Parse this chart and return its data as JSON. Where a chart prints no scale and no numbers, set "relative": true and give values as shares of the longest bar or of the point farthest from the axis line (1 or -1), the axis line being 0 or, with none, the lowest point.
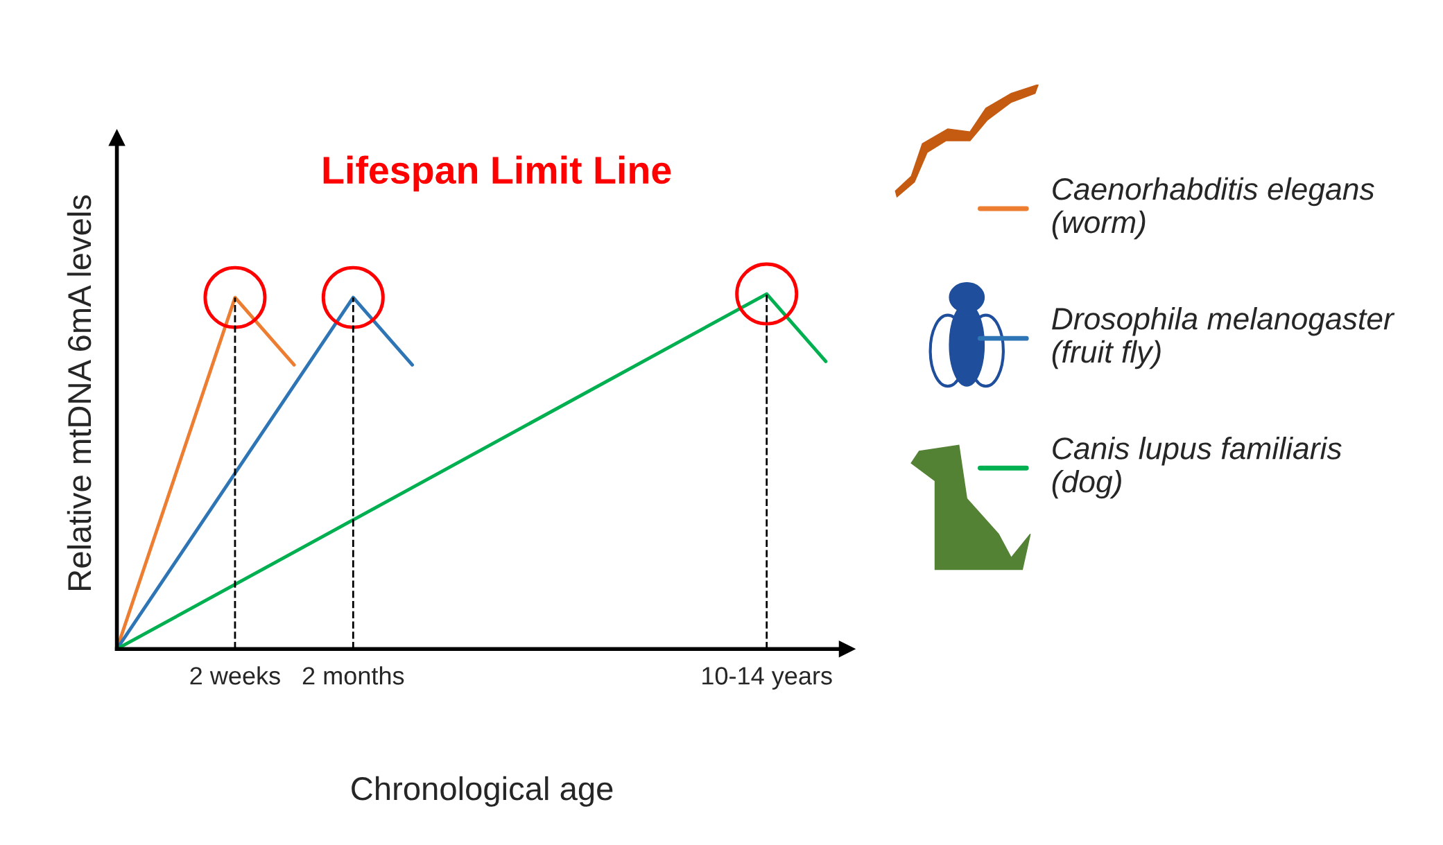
{
  "chart_data": {
    "type": "line",
    "title": "Lifespan Limit Line",
    "xlabel": "Chronological age",
    "ylabel": "Relative mtDNA 6mA levels",
    "relative": true,
    "categories": [
      null,
      null,
      "2 weeks",
      null,
      "2 months",
      null,
      null,
      null,
      null,
      null,
      null,
      "10-14 years",
      null
    ],
    "series": [
      {
        "name": "Caenorhabditis elegans\n(worm)",
        "color": "#ed7d31",
        "values": [
          0,
          null,
          0.99,
          0.8,
          null,
          null,
          null,
          null,
          null,
          null,
          null,
          null,
          null
        ]
      },
      {
        "name": "Drosophila melanogaster\n(fruit fly)",
        "color": "#2e75b6",
        "values": [
          0,
          null,
          null,
          null,
          0.99,
          0.8,
          null,
          null,
          null,
          null,
          null,
          null,
          null
        ]
      },
      {
        "name": "Canis lupus familiaris\n(dog)",
        "color": "#00b050",
        "values": [
          0,
          null,
          null,
          null,
          null,
          null,
          null,
          null,
          null,
          null,
          null,
          1,
          0.81
        ]
      }
    ],
    "ref_lines": [
      {
        "axis": "x",
        "value": "2 weeks",
        "line_style": "dashed",
        "color": "#000000"
      },
      {
        "axis": "x",
        "value": "2 months",
        "line_style": "dashed",
        "color": "#000000"
      },
      {
        "axis": "x",
        "value": "10-14 years",
        "line_style": "dashed",
        "color": "#000000"
      }
    ],
    "legend": "right",
    "grid": false,
    "marker": "none",
    "line_style": "solid"
  }
}
